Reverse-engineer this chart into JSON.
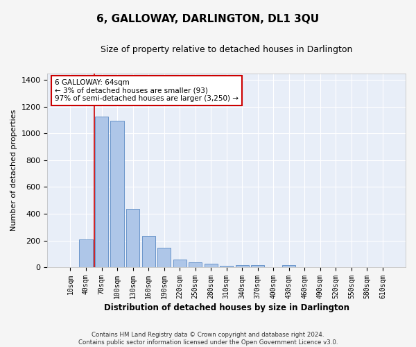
{
  "title": "6, GALLOWAY, DARLINGTON, DL1 3QU",
  "subtitle": "Size of property relative to detached houses in Darlington",
  "xlabel": "Distribution of detached houses by size in Darlington",
  "ylabel": "Number of detached properties",
  "footer_line1": "Contains HM Land Registry data © Crown copyright and database right 2024.",
  "footer_line2": "Contains public sector information licensed under the Open Government Licence v3.0.",
  "bar_labels": [
    "10sqm",
    "40sqm",
    "70sqm",
    "100sqm",
    "130sqm",
    "160sqm",
    "190sqm",
    "220sqm",
    "250sqm",
    "280sqm",
    "310sqm",
    "340sqm",
    "370sqm",
    "400sqm",
    "430sqm",
    "460sqm",
    "490sqm",
    "520sqm",
    "550sqm",
    "580sqm",
    "610sqm"
  ],
  "bar_values": [
    0,
    210,
    1125,
    1095,
    435,
    233,
    148,
    58,
    38,
    25,
    10,
    15,
    15,
    0,
    18,
    0,
    0,
    0,
    0,
    0,
    0
  ],
  "bar_color": "#aec6e8",
  "bar_edge_color": "#5b8bc4",
  "bg_color": "#e8eef8",
  "grid_color": "#ffffff",
  "annotation_text": "6 GALLOWAY: 64sqm\n← 3% of detached houses are smaller (93)\n97% of semi-detached houses are larger (3,250) →",
  "vline_x": 1.55,
  "vline_color": "#cc0000",
  "annotation_box_color": "#cc0000",
  "ylim": [
    0,
    1450
  ],
  "yticks": [
    0,
    200,
    400,
    600,
    800,
    1000,
    1200,
    1400
  ],
  "fig_bg_color": "#f5f5f5"
}
